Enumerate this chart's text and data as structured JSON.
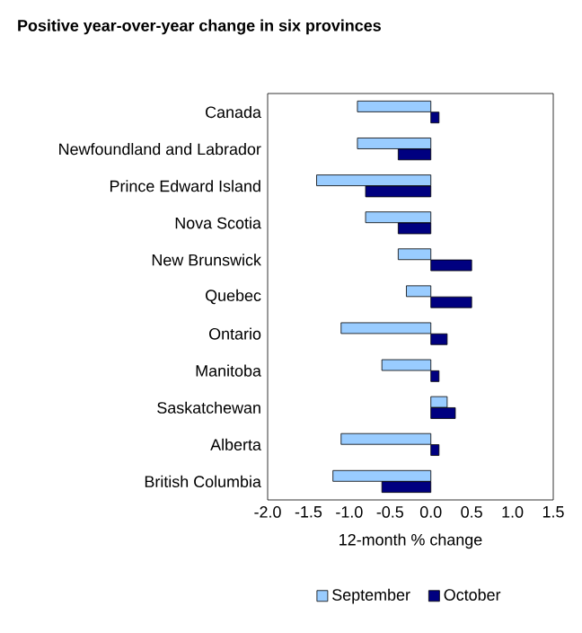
{
  "chart_data": {
    "type": "bar",
    "orientation": "horizontal",
    "title": "Positive year-over-year change in six provinces",
    "xlabel": "12-month % change",
    "categories": [
      "Canada",
      "Newfoundland and Labrador",
      "Prince Edward Island",
      "Nova Scotia",
      "New Brunswick",
      "Quebec",
      "Ontario",
      "Manitoba",
      "Saskatchewan",
      "Alberta",
      "British Columbia"
    ],
    "series": [
      {
        "name": "September",
        "color": "#99ccff",
        "values": [
          -0.9,
          -0.9,
          -1.4,
          -0.8,
          -0.4,
          -0.3,
          -1.1,
          -0.6,
          0.2,
          -1.1,
          -1.2
        ]
      },
      {
        "name": "October",
        "color": "#000080",
        "values": [
          0.1,
          -0.4,
          -0.8,
          -0.4,
          0.5,
          0.5,
          0.2,
          0.1,
          0.3,
          0.1,
          -0.6
        ]
      }
    ],
    "xlim": [
      -2,
      1.5
    ],
    "xticks": [
      {
        "value": -2,
        "label": "-2.0"
      },
      {
        "value": -1.5,
        "label": "-1.5"
      },
      {
        "value": -1,
        "label": "-1.0"
      },
      {
        "value": -0.5,
        "label": "-0.5"
      },
      {
        "value": 0,
        "label": "0.0"
      },
      {
        "value": 0.5,
        "label": "0.5"
      },
      {
        "value": 1,
        "label": "1.0"
      },
      {
        "value": 1.5,
        "label": "1.5"
      }
    ],
    "legend": "bottom",
    "grid": false
  }
}
